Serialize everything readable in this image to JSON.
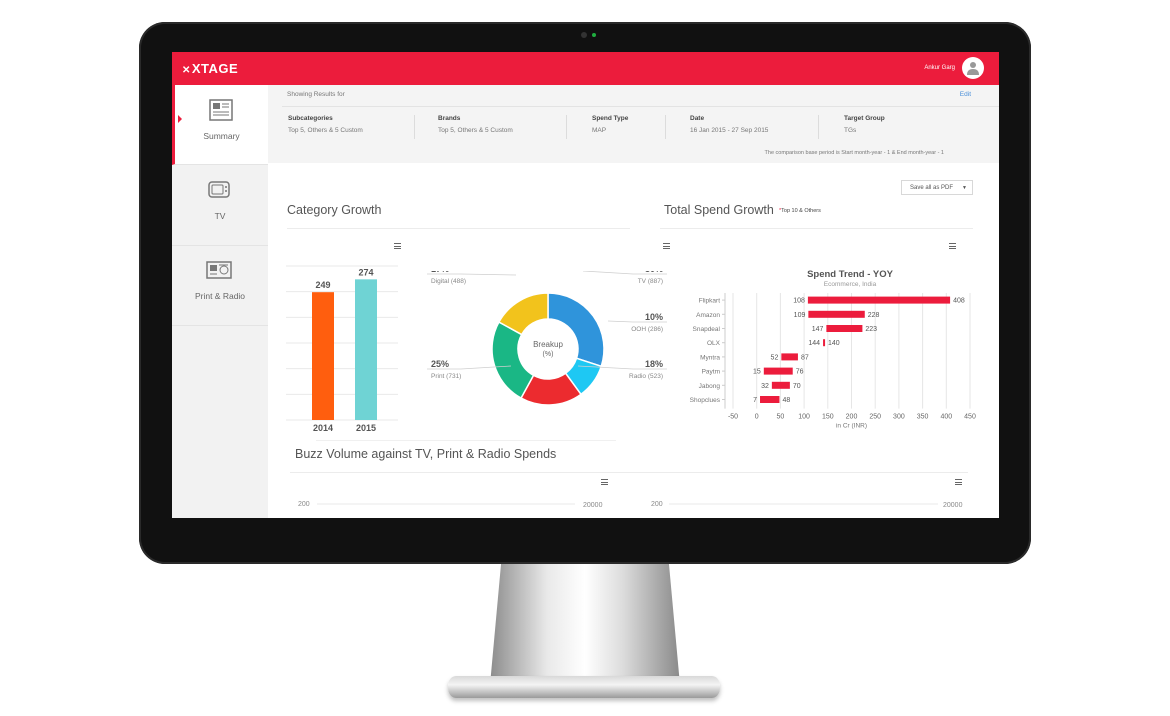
{
  "app": {
    "logo": "XTAGE",
    "logo_mark": "✕"
  },
  "user": {
    "name": "Ankur Garg"
  },
  "sidebar": {
    "items": [
      {
        "label": "Summary",
        "icon": "newspaper-icon",
        "active": true
      },
      {
        "label": "TV",
        "icon": "tv-icon",
        "active": false
      },
      {
        "label": "Print & Radio",
        "icon": "print-radio-icon",
        "active": false
      }
    ]
  },
  "filters": {
    "showing_label": "Showing Results for",
    "edit_label": "Edit",
    "columns": [
      {
        "heading": "Subcategories",
        "value": "Top 5, Others & 5 Custom"
      },
      {
        "heading": "Brands",
        "value": "Top 5, Others & 5 Custom"
      },
      {
        "heading": "Spend Type",
        "value": "MAP"
      },
      {
        "heading": "Date",
        "value": "16 Jan 2015 - 27 Sep 2015"
      },
      {
        "heading": "Target Group",
        "value": "TGs"
      }
    ],
    "comparison_note": "The comparison base period is Start month-year - 1 & End month-year - 1"
  },
  "toolbar": {
    "save_label": "Save all as PDF",
    "save_caret": "▼"
  },
  "sections": {
    "category_growth": "Category Growth",
    "total_spend_growth": "Total Spend Growth",
    "total_spend_note_star": "*",
    "total_spend_note": "Top 10 & Others",
    "buzz_volume": "Buzz Volume against TV, Print & Radio Spends"
  },
  "colors": {
    "accent": "#ec1c3c",
    "bar_2014": "#ff5e0e",
    "bar_2015": "#6fd3d4",
    "donut": [
      "#2f94db",
      "#1ec8f3",
      "#ec2b2f",
      "#1ab785",
      "#f2c31c"
    ]
  },
  "chart_data": [
    {
      "type": "bar",
      "categories": [
        "2014",
        "2015"
      ],
      "values": [
        249,
        274
      ],
      "data_labels": [
        "249",
        "274"
      ],
      "ylim": [
        0,
        300
      ],
      "grid": true,
      "colors": [
        "#ff5e0e",
        "#6fd3d4"
      ]
    },
    {
      "type": "pie",
      "center_label": [
        "Breakup",
        "(%)"
      ],
      "slices": [
        {
          "label": "TV (887)",
          "percent": "30%",
          "value": 30,
          "color": "#2f94db"
        },
        {
          "label": "OOH (286)",
          "percent": "10%",
          "value": 10,
          "color": "#1ec8f3"
        },
        {
          "label": "Radio (523)",
          "percent": "18%",
          "value": 18,
          "color": "#ec2b2f"
        },
        {
          "label": "Print (731)",
          "percent": "25%",
          "value": 25,
          "color": "#1ab785"
        },
        {
          "label": "Digital (488)",
          "percent": "17%",
          "value": 17,
          "color": "#f2c31c"
        }
      ]
    },
    {
      "type": "bar",
      "orientation": "horizontal",
      "title": "Spend Trend - YOY",
      "subtitle": "Ecommerce, India",
      "xlabel": "in Cr (INR)",
      "xlim": [
        -50,
        450
      ],
      "xticks": [
        -50,
        0,
        50,
        100,
        150,
        200,
        250,
        300,
        350,
        400,
        450
      ],
      "categories": [
        "Flipkart",
        "Amazon",
        "Snapdeal",
        "OLX",
        "Myntra",
        "Paytm",
        "Jabong",
        "Shopclues"
      ],
      "ranges": [
        [
          108,
          408
        ],
        [
          109,
          228
        ],
        [
          147,
          223
        ],
        [
          144,
          140
        ],
        [
          52,
          87
        ],
        [
          15,
          76
        ],
        [
          32,
          70
        ],
        [
          7,
          48
        ]
      ],
      "grid": true,
      "color": "#ec1c3c"
    },
    {
      "type": "line",
      "title": "Buzz Volume against TV, Print & Radio Spends",
      "left_panel": {
        "y_left": "200",
        "y_right": "20000"
      },
      "right_panel": {
        "y_left": "200",
        "y_right": "20000"
      }
    }
  ]
}
